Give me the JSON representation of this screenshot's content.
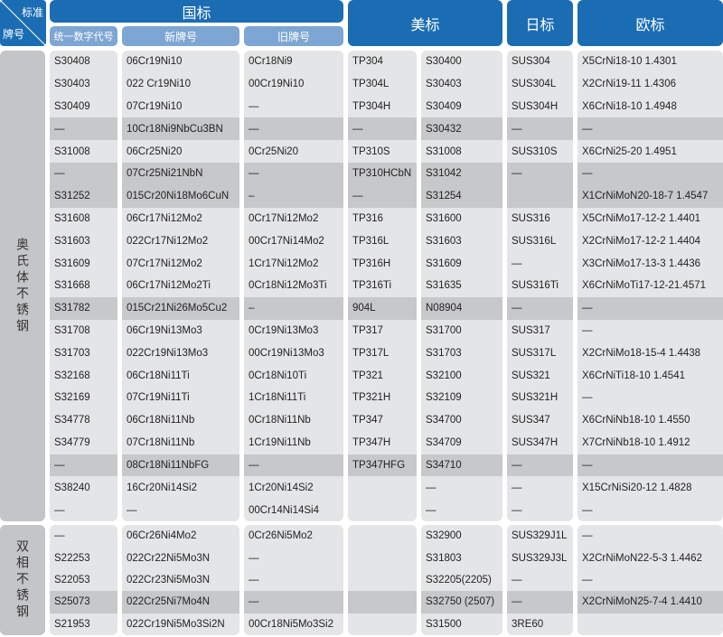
{
  "header": {
    "corner_top": "标准",
    "corner_bottom": "牌号",
    "gb": "国标",
    "gb_sub": [
      "统一数字代号",
      "新牌号",
      "旧牌号"
    ],
    "us": "美标",
    "jp": "日标",
    "eu": "欧标"
  },
  "colors": {
    "header": "#1b6db3",
    "subheader": "#7ea6d4",
    "cell": "#e4e5e7",
    "cell_shaded": "#c7c8ca"
  },
  "sections": [
    {
      "label": "奥氏体不锈钢",
      "rows": [
        {
          "shaded": false,
          "cells": [
            "S30408",
            "06Cr19Ni10",
            "0Cr18Ni9",
            "TP304",
            "S30400",
            "SUS304",
            "X5CrNi18-10 1.4301"
          ]
        },
        {
          "shaded": false,
          "cells": [
            "S30403",
            "022 Cr19Ni10",
            "00Cr19Ni10",
            "TP304L",
            "S30403",
            "SUS304L",
            "X2CrNi19-11  1.4306"
          ]
        },
        {
          "shaded": false,
          "cells": [
            "S30409",
            "07Cr19Ni10",
            "—",
            "TP304H",
            "S30409",
            "SUS304H",
            "X6CrNi18-10  1.4948"
          ]
        },
        {
          "shaded": true,
          "cells": [
            "—",
            "10Cr18Ni9NbCu3BN",
            "—",
            "—",
            "S30432",
            "—",
            "—"
          ]
        },
        {
          "shaded": false,
          "cells": [
            "S31008",
            "06Cr25Ni20",
            "0Cr25Ni20",
            "TP310S",
            "S31008",
            "SUS310S",
            "X6CrNi25-20 1.4951"
          ]
        },
        {
          "shaded": true,
          "cells": [
            "—",
            "07Cr25Ni21NbN",
            "—",
            "TP310HCbN",
            "S31042",
            "—",
            "—"
          ]
        },
        {
          "shaded": true,
          "cells": [
            "S31252",
            "015Cr20Ni18Mo6CuN",
            "–",
            "—",
            "S31254",
            "",
            "X1CrNiMoN20-18-7 1.4547"
          ]
        },
        {
          "shaded": false,
          "cells": [
            "S31608",
            "06Cr17Ni12Mo2",
            "0Cr17Ni12Mo2",
            "TP316",
            "S31600",
            "SUS316",
            "X5CrNiMo17-12-2 1.4401"
          ]
        },
        {
          "shaded": false,
          "cells": [
            "S31603",
            "022Cr17Ni12Mo2",
            "00Cr17Ni14Mo2",
            "TP316L",
            "S31603",
            "SUS316L",
            "X2CrNiMo17-12-2 1.4404"
          ]
        },
        {
          "shaded": false,
          "cells": [
            "S31609",
            "07Cr17Ni12Mo2",
            "1Cr17Ni12Mo2",
            "TP316H",
            "S31609",
            "—",
            "X3CrNiMo17-13-3 1.4436"
          ]
        },
        {
          "shaded": false,
          "cells": [
            "S31668",
            "06Cr17Ni12Mo2Ti",
            "0Cr18Ni12Mo3Ti",
            "TP316Ti",
            "S31635",
            "SUS316Ti",
            "X6CrNiMoTi17-12-21.4571"
          ]
        },
        {
          "shaded": true,
          "cells": [
            "S31782",
            "015Cr21Ni26Mo5Cu2",
            "–",
            "904L",
            "N08904",
            "—",
            "—"
          ]
        },
        {
          "shaded": false,
          "cells": [
            "S31708",
            "06Cr19Ni13Mo3",
            "0Cr19Ni13Mo3",
            "TP317",
            "S31700",
            "SUS317",
            "—"
          ]
        },
        {
          "shaded": false,
          "cells": [
            "S31703",
            "022Cr19Ni13Mo3",
            "00Cr19Ni13Mo3",
            "TP317L",
            "S31703",
            "SUS317L",
            "X2CrNiMo18-15-4 1.4438"
          ]
        },
        {
          "shaded": false,
          "cells": [
            "S32168",
            "06Cr18Ni11Ti",
            "0Cr18Ni10Ti",
            "TP321",
            "S32100",
            "SUS321",
            "X6CrNiTi18-10 1.4541"
          ]
        },
        {
          "shaded": false,
          "cells": [
            "S32169",
            "07Cr19Ni11Ti",
            "1Cr18Ni11Ti",
            "TP321H",
            "S32109",
            "SUS321H",
            "—"
          ]
        },
        {
          "shaded": false,
          "cells": [
            "S34778",
            "06Cr18Ni11Nb",
            "0Cr18Ni11Nb",
            "TP347",
            "S34700",
            "SUS347",
            "X6CrNiNb18-10 1.4550"
          ]
        },
        {
          "shaded": false,
          "cells": [
            "S34779",
            "07Cr18Ni11Nb",
            "1Cr19Ni11Nb",
            "TP347H",
            "S34709",
            "SUS347H",
            "X7CrNiNb18-10 1.4912"
          ]
        },
        {
          "shaded": true,
          "cells": [
            "—",
            "08Cr18Ni11NbFG",
            "—",
            "TP347HFG",
            "S34710",
            "—",
            "—"
          ]
        },
        {
          "shaded": false,
          "cells": [
            "S38240",
            "16Cr20Ni14Si2",
            "1Cr20Ni14Si2",
            "",
            "—",
            "—",
            "X15CrNiSi20-12 1.4828"
          ]
        },
        {
          "shaded": false,
          "cells": [
            "—",
            "—",
            "00Cr14Ni14Si4",
            "",
            "—",
            "—",
            "—"
          ]
        }
      ]
    },
    {
      "label": "双相不锈钢",
      "rows": [
        {
          "shaded": false,
          "cells": [
            "—",
            "06Cr26Ni4Mo2",
            "0Cr26Ni5Mo2",
            "",
            "S32900",
            "SUS329J1L",
            "—"
          ]
        },
        {
          "shaded": false,
          "cells": [
            "S22253",
            "022Cr22Ni5Mo3N",
            "—",
            "",
            "S31803",
            "SUS329J3L",
            "X2CrNiMoN22-5-3 1.4462"
          ]
        },
        {
          "shaded": false,
          "cells": [
            "S22053",
            "022Cr23Ni5Mo3N",
            "—",
            "",
            "S32205(2205)",
            "—",
            "—"
          ]
        },
        {
          "shaded": true,
          "cells": [
            "S25073",
            "022Cr25Ni7Mo4N",
            "—",
            "",
            "S32750 (2507)",
            "—",
            "X2CrNiMoN25-7-4 1.4410"
          ]
        },
        {
          "shaded": false,
          "cells": [
            "S21953",
            "022Cr19Ni5Mo3Si2N",
            "00Cr18Ni5Mo3Si2",
            "",
            "S31500",
            "3RE60",
            ""
          ]
        }
      ]
    }
  ]
}
